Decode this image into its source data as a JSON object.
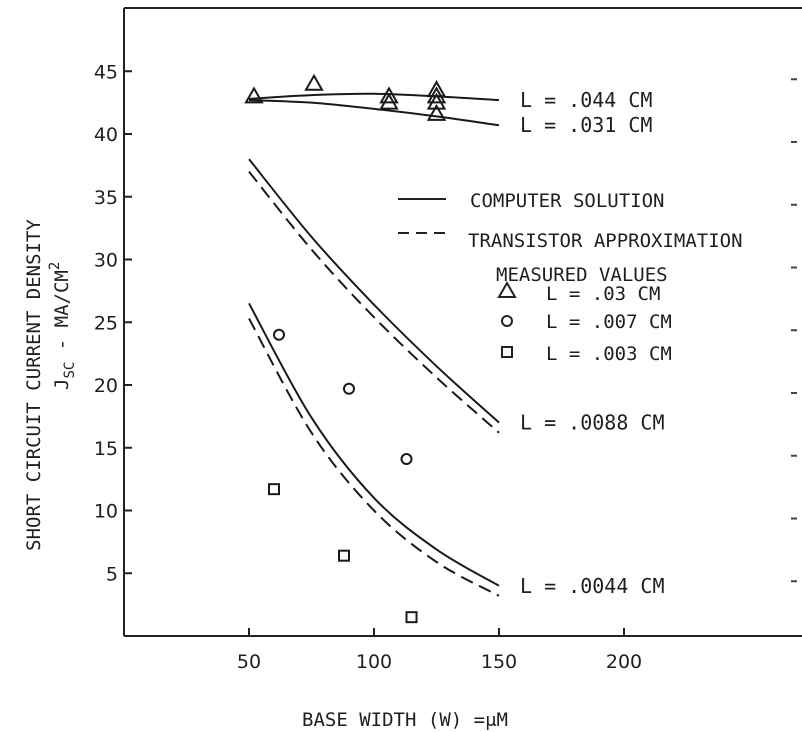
{
  "chart_data": {
    "type": "scatter",
    "title": "",
    "xlabel": "BASE WIDTH (W) =μM",
    "ylabel_line1": "SHORT CIRCUIT CURRENT DENSITY",
    "ylabel_line2": "J",
    "ylabel_sub": "SC",
    "ylabel_rest": " - MA/CM",
    "ylabel_sup": "2",
    "xlim": [
      0,
      270
    ],
    "ylim": [
      0,
      50
    ],
    "x_ticks": [
      50,
      100,
      150,
      200
    ],
    "y_ticks": [
      5,
      10,
      15,
      20,
      25,
      30,
      35,
      40,
      45
    ],
    "legend": {
      "computer": "COMPUTER SOLUTION",
      "transistor": "TRANSISTOR APPROXIMATION",
      "measured_title": "MEASURED VALUES",
      "tri": "L = .03  CM",
      "circ": "L = .007 CM",
      "sq": "L = .003 CM"
    },
    "curves": [
      {
        "label": "L = .044 CM",
        "style": "solid",
        "x": [
          50,
          75,
          100,
          125,
          150
        ],
        "y": [
          42.8,
          43.1,
          43.2,
          43.0,
          42.7
        ]
      },
      {
        "label": "L = .031 CM",
        "style": "solid",
        "x": [
          50,
          75,
          100,
          125,
          150
        ],
        "y": [
          42.7,
          42.5,
          42.0,
          41.4,
          40.7
        ]
      },
      {
        "label": "L = .0088 CM",
        "style": "solid",
        "x": [
          50,
          75,
          100,
          125,
          150
        ],
        "y": [
          38.0,
          31.8,
          26.4,
          21.5,
          17.0
        ]
      },
      {
        "label": "",
        "style": "dashed",
        "x": [
          50,
          75,
          100,
          125,
          150
        ],
        "y": [
          37.0,
          30.8,
          25.4,
          20.6,
          16.2
        ]
      },
      {
        "label": "L = .0044 CM",
        "style": "solid",
        "x": [
          50,
          75,
          100,
          125,
          150
        ],
        "y": [
          26.5,
          17.4,
          11.0,
          6.9,
          4.0
        ]
      },
      {
        "label": "",
        "style": "dashed",
        "x": [
          50,
          75,
          100,
          125,
          150
        ],
        "y": [
          25.3,
          16.2,
          10.0,
          5.9,
          3.2
        ]
      }
    ],
    "points": {
      "triangles": [
        [
          52,
          43.0
        ],
        [
          76,
          44.0
        ],
        [
          106,
          43.0
        ],
        [
          106,
          42.5
        ],
        [
          125,
          43.5
        ],
        [
          125,
          43.0
        ],
        [
          125,
          42.5
        ],
        [
          125,
          41.6
        ]
      ],
      "circles": [
        [
          62,
          24.0
        ],
        [
          90,
          19.7
        ],
        [
          113,
          14.1
        ]
      ],
      "squares": [
        [
          60,
          11.7
        ],
        [
          88,
          6.4
        ],
        [
          115,
          1.5
        ]
      ]
    }
  }
}
